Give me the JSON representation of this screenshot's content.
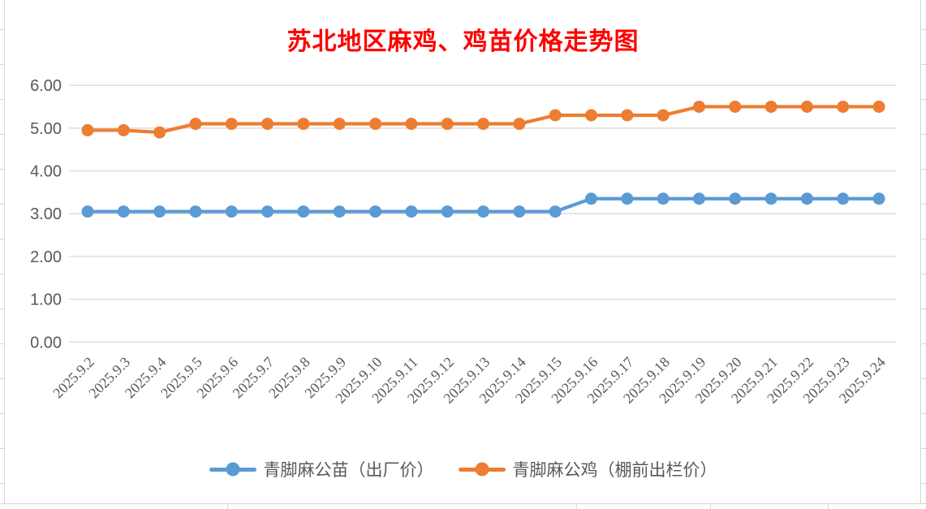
{
  "window": {
    "background": "#FFFFFF"
  },
  "title": {
    "text": "苏北地区麻鸡、鸡苗价格走势图",
    "color": "#FF0000"
  },
  "chart_data": {
    "type": "line",
    "title": "苏北地区麻鸡、鸡苗价格走势图",
    "title_color": "#FF0000",
    "categories": [
      "2025.9.2",
      "2025.9.3",
      "2025.9.4",
      "2025.9.5",
      "2025.9.6",
      "2025.9.7",
      "2025.9.8",
      "2025.9.9",
      "2025.9.10",
      "2025.9.11",
      "2025.9.12",
      "2025.9.13",
      "2025.9.14",
      "2025.9.15",
      "2025.9.16",
      "2025.9.17",
      "2025.9.18",
      "2025.9.19",
      "2025.9.20",
      "2025.9.21",
      "2025.9.22",
      "2025.9.23",
      "2025.9.24"
    ],
    "series": [
      {
        "name": "青脚麻公苗（出厂价）",
        "color": "#5B9BD5",
        "marker": "circle",
        "values": [
          3.05,
          3.05,
          3.05,
          3.05,
          3.05,
          3.05,
          3.05,
          3.05,
          3.05,
          3.05,
          3.05,
          3.05,
          3.05,
          3.05,
          3.35,
          3.35,
          3.35,
          3.35,
          3.35,
          3.35,
          3.35,
          3.35,
          3.35
        ]
      },
      {
        "name": "青脚麻公鸡（棚前出栏价）",
        "color": "#ED7D31",
        "marker": "circle",
        "values": [
          4.95,
          4.95,
          4.9,
          5.1,
          5.1,
          5.1,
          5.1,
          5.1,
          5.1,
          5.1,
          5.1,
          5.1,
          5.1,
          5.3,
          5.3,
          5.3,
          5.3,
          5.5,
          5.5,
          5.5,
          5.5,
          5.5,
          5.5
        ]
      }
    ],
    "xlabel": "",
    "ylabel": "",
    "ylim": [
      0,
      6
    ],
    "ytick_labels": [
      "0.00",
      "1.00",
      "2.00",
      "3.00",
      "4.00",
      "5.00",
      "6.00"
    ],
    "x_label_rotation_deg": 45,
    "grid": true,
    "legend_position": "bottom",
    "axis_text_color": "#595959",
    "gridline_color": "#D9D9D9"
  }
}
